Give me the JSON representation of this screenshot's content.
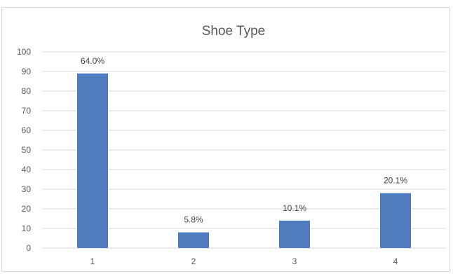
{
  "chart_data": {
    "type": "bar",
    "title": "Shoe Type",
    "categories": [
      "1",
      "2",
      "3",
      "4"
    ],
    "values": [
      89,
      8,
      14,
      28
    ],
    "data_labels": [
      "64.0%",
      "5.8%",
      "10.1%",
      "20.1%"
    ],
    "ylim": [
      0,
      100
    ],
    "yticks": [
      "0",
      "10",
      "20",
      "30",
      "40",
      "50",
      "60",
      "70",
      "80",
      "90",
      "100"
    ],
    "grid": true,
    "legend": "none",
    "bar_color": "#4f7bbf",
    "grid_color": "#d9d9d9"
  }
}
